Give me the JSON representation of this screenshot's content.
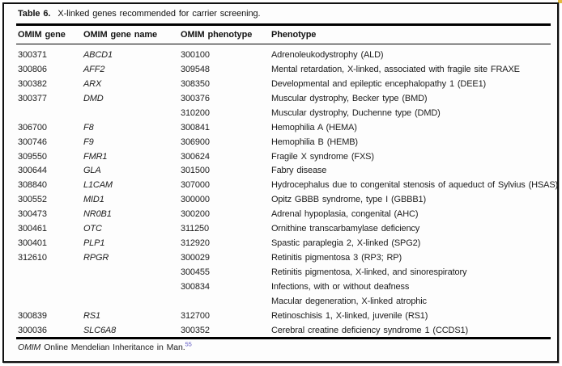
{
  "table": {
    "label": "Table 6.",
    "caption": "X-linked genes recommended for carrier screening.",
    "columns": [
      "OMIM gene",
      "OMIM gene name",
      "OMIM phenotype",
      "Phenotype"
    ],
    "rows": [
      {
        "omim_gene": "300371",
        "gene_name": "ABCD1",
        "omim_phenotype": "300100",
        "phenotype": "Adrenoleukodystrophy (ALD)"
      },
      {
        "omim_gene": "300806",
        "gene_name": "AFF2",
        "omim_phenotype": "309548",
        "phenotype": "Mental retardation, X-linked, associated with fragile site FRAXE"
      },
      {
        "omim_gene": "300382",
        "gene_name": "ARX",
        "omim_phenotype": "308350",
        "phenotype": "Developmental and epileptic encephalopathy 1 (DEE1)"
      },
      {
        "omim_gene": "300377",
        "gene_name": "DMD",
        "omim_phenotype": "300376",
        "phenotype": "Muscular dystrophy, Becker type (BMD)"
      },
      {
        "omim_gene": "",
        "gene_name": "",
        "omim_phenotype": "310200",
        "phenotype": "Muscular dystrophy, Duchenne type (DMD)"
      },
      {
        "omim_gene": "306700",
        "gene_name": "F8",
        "omim_phenotype": "300841",
        "phenotype": "Hemophilia A (HEMA)"
      },
      {
        "omim_gene": "300746",
        "gene_name": "F9",
        "omim_phenotype": "306900",
        "phenotype": "Hemophilia B (HEMB)"
      },
      {
        "omim_gene": "309550",
        "gene_name": "FMR1",
        "omim_phenotype": "300624",
        "phenotype": "Fragile X syndrome (FXS)"
      },
      {
        "omim_gene": "300644",
        "gene_name": "GLA",
        "omim_phenotype": "301500",
        "phenotype": "Fabry disease"
      },
      {
        "omim_gene": "308840",
        "gene_name": "L1CAM",
        "omim_phenotype": "307000",
        "phenotype": "Hydrocephalus due to congenital stenosis of aqueduct of Sylvius (HSAS)"
      },
      {
        "omim_gene": "300552",
        "gene_name": "MID1",
        "omim_phenotype": "300000",
        "phenotype": "Opitz GBBB syndrome, type I (GBBB1)"
      },
      {
        "omim_gene": "300473",
        "gene_name": "NR0B1",
        "omim_phenotype": "300200",
        "phenotype": "Adrenal hypoplasia, congenital (AHC)"
      },
      {
        "omim_gene": "300461",
        "gene_name": "OTC",
        "omim_phenotype": "311250",
        "phenotype": "Ornithine transcarbamylase deficiency"
      },
      {
        "omim_gene": "300401",
        "gene_name": "PLP1",
        "omim_phenotype": "312920",
        "phenotype": "Spastic paraplegia 2, X-linked (SPG2)"
      },
      {
        "omim_gene": "312610",
        "gene_name": "RPGR",
        "omim_phenotype": "300029",
        "phenotype": "Retinitis pigmentosa 3 (RP3; RP)"
      },
      {
        "omim_gene": "",
        "gene_name": "",
        "omim_phenotype": "300455",
        "phenotype": "Retinitis pigmentosa, X-linked, and sinorespiratory"
      },
      {
        "omim_gene": "",
        "gene_name": "",
        "omim_phenotype": "300834",
        "phenotype": "Infections, with or without deafness"
      },
      {
        "omim_gene": "",
        "gene_name": "",
        "omim_phenotype": "",
        "phenotype": "Macular degeneration, X-linked atrophic"
      },
      {
        "omim_gene": "300839",
        "gene_name": "RS1",
        "omim_phenotype": "312700",
        "phenotype": "Retinoschisis 1, X-linked, juvenile (RS1)"
      },
      {
        "omim_gene": "300036",
        "gene_name": "SLC6A8",
        "omim_phenotype": "300352",
        "phenotype": "Cerebral creatine deficiency syndrome 1 (CCDS1)"
      }
    ]
  },
  "footnote": {
    "abbrev": "OMIM",
    "text": "Online Mendelian Inheritance in Man.",
    "reference": "55"
  },
  "colors": {
    "citation_link": "#5b55c2",
    "rule": "#000000",
    "text": "#1d1d1d",
    "frame_border": "#101010",
    "corner_mark": "#e3b93d"
  }
}
